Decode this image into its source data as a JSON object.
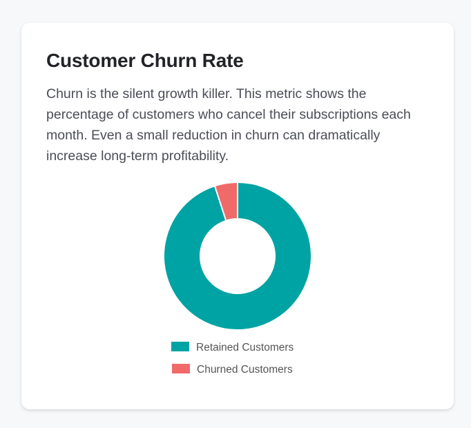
{
  "card": {
    "title": "Customer Churn Rate",
    "description": "Churn is the silent growth killer. This metric shows the percentage of customers who cancel their subscriptions each month. Even a small reduction in churn can dramatically increase long-term profitability."
  },
  "chart_data": {
    "type": "pie",
    "variant": "doughnut",
    "categories": [
      "Retained Customers",
      "Churned Customers"
    ],
    "values": [
      95,
      5
    ],
    "colors": [
      "#00a3a3",
      "#f06a6a"
    ],
    "legend_position": "bottom"
  }
}
